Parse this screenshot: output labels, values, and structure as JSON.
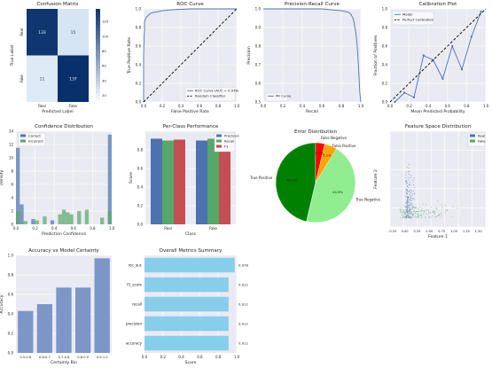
{
  "chart_data": [
    {
      "type": "heatmap",
      "title": "Confusion Matrix",
      "xlabel": "Predicted Label",
      "ylabel": "True Label",
      "x_categories": [
        "Real",
        "Fake"
      ],
      "y_categories": [
        "Real",
        "Fake"
      ],
      "matrix": [
        [
          133,
          15
        ],
        [
          11,
          137
        ]
      ],
      "colorbar_ticks": [
        20,
        40,
        60,
        80,
        100,
        120
      ],
      "colors": {
        "low": "#f7fbff",
        "high": "#08306b"
      }
    },
    {
      "type": "line",
      "title": "ROC Curve",
      "xlabel": "False Positive Rate",
      "ylabel": "True Positive Rate",
      "xlim": [
        0,
        1
      ],
      "ylim": [
        0,
        1
      ],
      "xticks": [
        "0.0",
        "0.2",
        "0.4",
        "0.6",
        "0.8",
        "1.0"
      ],
      "yticks": [
        "0.0",
        "0.2",
        "0.4",
        "0.6",
        "0.8",
        "1.0"
      ],
      "series": [
        {
          "name": "ROC Curve (AUC = 0.978)",
          "color": "#4c72b0",
          "x": [
            0,
            0,
            0.005,
            0.01,
            0.01,
            0.02,
            0.03,
            0.05,
            0.07,
            0.1,
            0.15,
            0.2,
            0.3,
            0.5,
            0.7,
            1.0
          ],
          "y": [
            0,
            0.5,
            0.7,
            0.78,
            0.86,
            0.89,
            0.91,
            0.93,
            0.95,
            0.96,
            0.97,
            0.98,
            0.99,
            1.0,
            1.0,
            1.0
          ]
        },
        {
          "name": "Random Classifier",
          "color": "#000000",
          "dashed": true,
          "x": [
            0,
            1
          ],
          "y": [
            0,
            1
          ]
        }
      ],
      "legend": "lower-right"
    },
    {
      "type": "line",
      "title": "Precision-Recall Curve",
      "xlabel": "Recall",
      "ylabel": "Precision",
      "xlim": [
        0,
        1
      ],
      "ylim": [
        0.5,
        1
      ],
      "xticks": [
        "0.0",
        "0.2",
        "0.4",
        "0.6",
        "0.8",
        "1.0"
      ],
      "yticks": [
        "0.5",
        "0.6",
        "0.7",
        "0.8",
        "0.9",
        "1.0"
      ],
      "series": [
        {
          "name": "PR Curve",
          "color": "#4c72b0",
          "x": [
            0,
            0.3,
            0.5,
            0.6,
            0.7,
            0.8,
            0.85,
            0.88,
            0.9,
            0.91,
            0.92,
            0.93,
            0.94,
            0.95,
            0.96,
            0.97,
            0.98,
            0.99,
            1.0
          ],
          "y": [
            1.0,
            1.0,
            1.0,
            1.0,
            0.995,
            0.99,
            0.985,
            0.98,
            0.97,
            0.96,
            0.95,
            0.93,
            0.9,
            0.87,
            0.82,
            0.75,
            0.65,
            0.55,
            0.5
          ]
        }
      ],
      "legend": "lower-left"
    },
    {
      "type": "line",
      "title": "Calibration Plot",
      "xlabel": "Mean Predicted Probability",
      "ylabel": "Fraction of Positives",
      "xlim": [
        0,
        1
      ],
      "ylim": [
        0,
        1
      ],
      "xticks": [
        "0.0",
        "0.2",
        "0.4",
        "0.6",
        "0.8",
        "1.0"
      ],
      "yticks": [
        "0.0",
        "0.2",
        "0.4",
        "0.6",
        "0.8",
        "1.0"
      ],
      "series": [
        {
          "name": "Model",
          "color": "#4c72b0",
          "markers": true,
          "x": [
            0.05,
            0.15,
            0.25,
            0.35,
            0.45,
            0.55,
            0.65,
            0.75,
            0.85,
            0.95
          ],
          "y": [
            0.0,
            0.1,
            0.05,
            0.5,
            0.45,
            0.25,
            0.6,
            0.35,
            0.7,
            0.97
          ]
        },
        {
          "name": "Perfect Calibration",
          "color": "#000000",
          "dashed": true,
          "x": [
            0,
            1
          ],
          "y": [
            0,
            1
          ]
        }
      ],
      "legend": "top-left"
    },
    {
      "type": "bar",
      "title": "Confidence Distribution",
      "xlabel": "Prediction Confidence",
      "ylabel": "Density",
      "xlim": [
        0,
        1
      ],
      "ylim": [
        0,
        14
      ],
      "xticks": [
        "0.0",
        "0.2",
        "0.4",
        "0.6",
        "0.8",
        "1.0"
      ],
      "yticks": [
        "0",
        "2",
        "4",
        "6",
        "8",
        "10",
        "12",
        "14"
      ],
      "bin_width": 0.04,
      "series": [
        {
          "name": "Correct",
          "color": "#4c72b0",
          "bins": [
            0.0,
            0.04,
            0.16,
            0.36,
            0.96
          ],
          "values": [
            11.5,
            3.0,
            0.8,
            0.6,
            13.5
          ]
        },
        {
          "name": "Incorrect",
          "color": "#55a868",
          "bins": [
            0.0,
            0.08,
            0.2,
            0.28,
            0.44,
            0.48,
            0.52,
            0.56,
            0.64,
            0.72,
            0.88,
            0.96
          ],
          "values": [
            2.0,
            0.5,
            0.6,
            1.2,
            1.5,
            2.2,
            1.8,
            1.5,
            2.0,
            2.2,
            1.0,
            2.0
          ]
        }
      ],
      "legend": "top-left"
    },
    {
      "type": "bar",
      "title": "Per-Class Performance",
      "xlabel": "Class",
      "ylabel": "Score",
      "ylim": [
        0,
        1
      ],
      "yticks": [
        "0.0",
        "0.2",
        "0.4",
        "0.6",
        "0.8"
      ],
      "categories": [
        "Real",
        "Fake"
      ],
      "series": [
        {
          "name": "Precision",
          "color": "#4c72b0",
          "values": [
            0.92,
            0.9
          ]
        },
        {
          "name": "Recall",
          "color": "#55a868",
          "values": [
            0.9,
            0.92
          ]
        },
        {
          "name": "F1",
          "color": "#c44e52",
          "values": [
            0.91,
            0.91
          ]
        }
      ],
      "legend": "top-right"
    },
    {
      "type": "pie",
      "title": "Error Distribution",
      "slices": [
        {
          "label": "True Positive",
          "value": 46.3,
          "pct": "46.3%",
          "color": "#008000"
        },
        {
          "label": "True Negative",
          "value": 44.9,
          "pct": "44.9%",
          "color": "#90ee90"
        },
        {
          "label": "False Positive",
          "value": 5.1,
          "pct": "5.1%",
          "color": "#ffa500"
        },
        {
          "label": "False Negative",
          "value": 3.7,
          "pct": "3.7%",
          "color": "#ff0000"
        }
      ]
    },
    {
      "type": "scatter",
      "title": "Feature Space Distribution",
      "xlabel": "Feature 1",
      "ylabel": "Feature 2",
      "xlim": [
        -0.3,
        1.65
      ],
      "ylim": [
        -0.3,
        2.4
      ],
      "xticks": [
        "-0.25",
        "0.00",
        "0.25",
        "0.50",
        "0.75",
        "1.00",
        "1.25",
        "1.50"
      ],
      "series": [
        {
          "name": "Real",
          "color": "#4c72b0"
        },
        {
          "name": "Fake",
          "color": "#55a868"
        }
      ],
      "legend": "top-right"
    },
    {
      "type": "bar",
      "title": "Accuracy vs Model Certainty",
      "xlabel": "Certainty Bin",
      "ylabel": "Accuracy",
      "ylim": [
        0,
        1
      ],
      "yticks": [
        "0.0",
        "0.2",
        "0.4",
        "0.6",
        "0.8",
        "1.0"
      ],
      "categories": [
        "0.5-0.6",
        "0.6-0.7",
        "0.7-0.8",
        "0.8-0.9",
        "0.9-1.0"
      ],
      "values": [
        0.43,
        0.5,
        0.67,
        0.67,
        0.97
      ],
      "color": "#7b96c7"
    },
    {
      "type": "bar",
      "title": "Overall Metrics Summary",
      "xlabel": "Score",
      "xlim": [
        0,
        1
      ],
      "xticks": [
        "0.0",
        "0.2",
        "0.4",
        "0.6",
        "0.8",
        "1.0"
      ],
      "categories": [
        "roc_auc",
        "f1_score",
        "recall",
        "precision",
        "accuracy"
      ],
      "values": [
        0.978,
        0.912,
        0.912,
        0.912,
        0.912
      ],
      "labels": [
        "0.978",
        "0.912",
        "0.912",
        "0.912",
        "0.912"
      ],
      "color": "#87ceeb"
    }
  ]
}
